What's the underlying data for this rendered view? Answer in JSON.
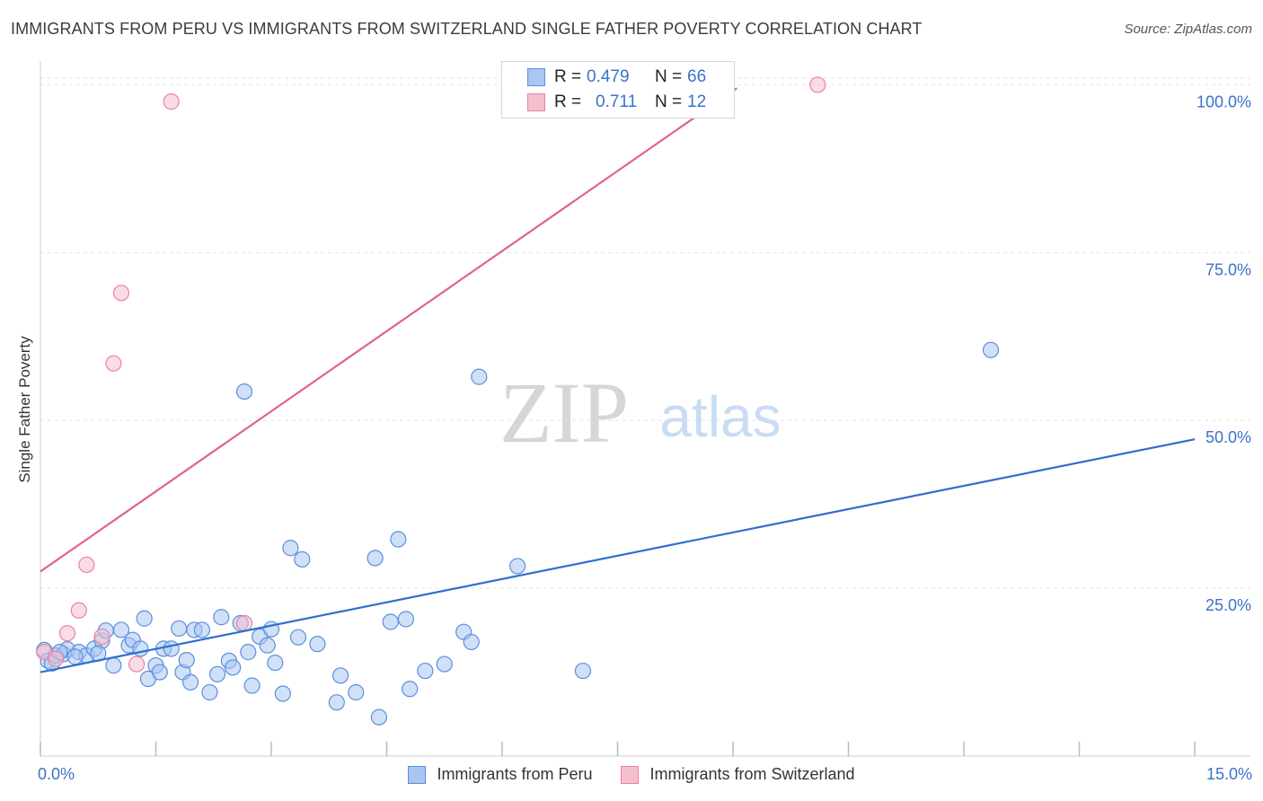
{
  "chart_data": {
    "type": "scatter",
    "title": "IMMIGRANTS FROM PERU VS IMMIGRANTS FROM SWITZERLAND SINGLE FATHER POVERTY CORRELATION CHART",
    "source": "Source: ZipAtlas.com",
    "watermark": {
      "zip": "ZIP",
      "atlas": "atlas"
    },
    "xlabel": "",
    "ylabel": "Single Father Poverty",
    "xlim": [
      0,
      15
    ],
    "ylim": [
      0,
      103
    ],
    "x_tick_labels": {
      "min": "0.0%",
      "max": "15.0%"
    },
    "y_ticks": [
      {
        "value": 25,
        "label": "25.0%"
      },
      {
        "value": 50,
        "label": "50.0%"
      },
      {
        "value": 75,
        "label": "75.0%"
      },
      {
        "value": 100,
        "label": "100.0%"
      }
    ],
    "series": [
      {
        "name": "Immigrants from Peru",
        "color": "#5b8fde",
        "fill": "#a9c6f1",
        "R": "0.479",
        "N": "66",
        "trend": {
          "x": [
            0,
            15
          ],
          "y": [
            12.5,
            47.2
          ]
        },
        "points": [
          [
            0.05,
            15.8
          ],
          [
            0.1,
            14.2
          ],
          [
            0.15,
            13.8
          ],
          [
            0.2,
            15.0
          ],
          [
            0.3,
            15.2
          ],
          [
            0.35,
            15.9
          ],
          [
            0.5,
            15.5
          ],
          [
            0.6,
            15.0
          ],
          [
            0.7,
            16.0
          ],
          [
            0.8,
            17.2
          ],
          [
            0.85,
            18.7
          ],
          [
            0.95,
            13.5
          ],
          [
            1.05,
            18.8
          ],
          [
            1.15,
            16.5
          ],
          [
            1.2,
            17.3
          ],
          [
            1.3,
            16.0
          ],
          [
            1.35,
            20.5
          ],
          [
            1.4,
            11.5
          ],
          [
            1.5,
            13.5
          ],
          [
            1.55,
            12.5
          ],
          [
            1.6,
            16.0
          ],
          [
            1.7,
            16.0
          ],
          [
            1.8,
            19.0
          ],
          [
            1.85,
            12.5
          ],
          [
            1.9,
            14.3
          ],
          [
            1.95,
            11.0
          ],
          [
            2.0,
            18.8
          ],
          [
            2.1,
            18.8
          ],
          [
            2.2,
            9.5
          ],
          [
            2.3,
            12.2
          ],
          [
            2.35,
            20.7
          ],
          [
            2.45,
            14.2
          ],
          [
            2.5,
            13.2
          ],
          [
            2.6,
            19.8
          ],
          [
            2.7,
            15.5
          ],
          [
            2.65,
            54.3
          ],
          [
            2.75,
            10.5
          ],
          [
            2.85,
            17.8
          ],
          [
            2.95,
            16.5
          ],
          [
            3.0,
            18.9
          ],
          [
            3.05,
            13.9
          ],
          [
            3.15,
            9.3
          ],
          [
            3.25,
            31.0
          ],
          [
            3.35,
            17.7
          ],
          [
            3.4,
            29.3
          ],
          [
            3.6,
            16.7
          ],
          [
            3.85,
            8.0
          ],
          [
            3.9,
            12.0
          ],
          [
            4.1,
            9.5
          ],
          [
            4.35,
            29.5
          ],
          [
            4.4,
            5.8
          ],
          [
            4.55,
            20.0
          ],
          [
            4.65,
            32.3
          ],
          [
            4.75,
            20.4
          ],
          [
            4.8,
            10.0
          ],
          [
            5.0,
            12.7
          ],
          [
            5.25,
            13.7
          ],
          [
            5.5,
            18.5
          ],
          [
            5.6,
            17.0
          ],
          [
            5.7,
            56.5
          ],
          [
            6.2,
            28.3
          ],
          [
            7.05,
            12.7
          ],
          [
            12.35,
            60.5
          ],
          [
            0.25,
            15.5
          ],
          [
            0.45,
            14.8
          ],
          [
            0.75,
            15.3
          ]
        ]
      },
      {
        "name": "Immigrants from Switzerland",
        "color": "#e8839f",
        "fill": "#f6bfcf",
        "R": "0.711",
        "N": "12",
        "trend": {
          "x": [
            0,
            9.05
          ],
          "y": [
            27.5,
            99.5
          ]
        },
        "points": [
          [
            0.05,
            15.5
          ],
          [
            0.2,
            14.5
          ],
          [
            0.35,
            18.3
          ],
          [
            0.5,
            21.7
          ],
          [
            0.6,
            28.5
          ],
          [
            0.8,
            17.8
          ],
          [
            0.95,
            58.5
          ],
          [
            1.05,
            69.0
          ],
          [
            1.25,
            13.7
          ],
          [
            1.7,
            97.5
          ],
          [
            2.65,
            19.8
          ],
          [
            10.1,
            100.0
          ]
        ]
      }
    ]
  },
  "legend": {
    "r_label": "R =",
    "n_label": "N ="
  }
}
